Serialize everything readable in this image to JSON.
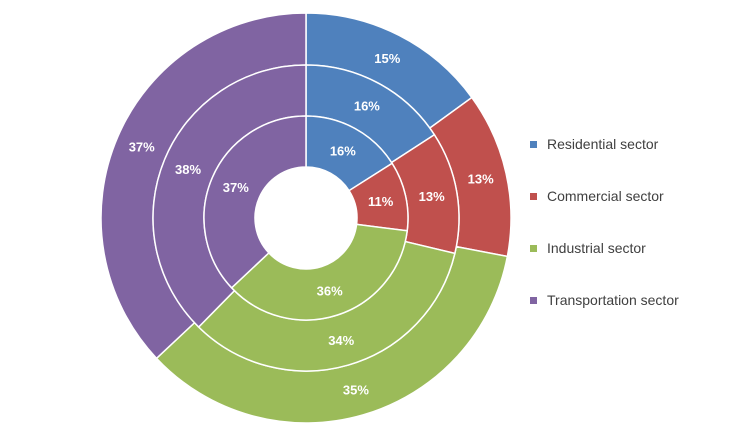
{
  "chart_data": {
    "type": "donut",
    "categories": [
      "Residential sector",
      "Commercial sector",
      "Industrial sector",
      "Transportation sector"
    ],
    "colors": [
      "#4f81bd",
      "#c0504d",
      "#9bbb59",
      "#8064a2"
    ],
    "rings": [
      {
        "values": [
          15,
          13,
          35,
          37
        ],
        "labels": [
          "15%",
          "13%",
          "35%",
          "37%"
        ]
      },
      {
        "values": [
          16,
          13,
          34,
          38
        ],
        "labels": [
          "16%",
          "13%",
          "34%",
          "38%"
        ]
      },
      {
        "values": [
          16,
          11,
          36,
          37
        ],
        "labels": [
          "16%",
          "11%",
          "36%",
          "37%"
        ]
      }
    ],
    "legend_position": "right"
  }
}
